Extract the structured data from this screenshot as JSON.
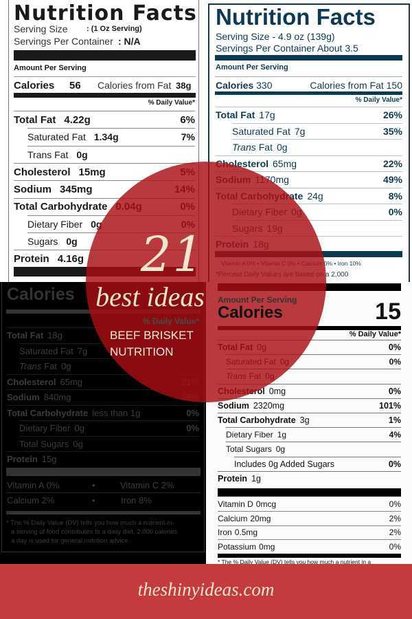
{
  "panels": [
    {
      "title": "Nutrition Facts",
      "serving_size_label": "Serving Size",
      "serving_size_value": ": (1 Oz Serving)",
      "servings_label": "Servings Per Container",
      "servings_value": ": N/A",
      "amount_per_serving": "Amount Per Serving",
      "calories_label": "Calories",
      "calories_value": "56",
      "calories_fat_label": "Calories from Fat",
      "calories_fat_value": "38g",
      "daily_value_header": "% Daily Value*",
      "rows": [
        {
          "label": "Total Fat",
          "amount": "4.22g",
          "dv": "6%",
          "bold": true
        },
        {
          "label": "Saturated Fat",
          "amount": "1.34g",
          "dv": "7%",
          "sub": true
        },
        {
          "label": "Trans Fat",
          "amount": "0g",
          "dv": "",
          "sub": true
        },
        {
          "label": "Cholesterol",
          "amount": "15mg",
          "dv": "5%",
          "bold": true
        },
        {
          "label": "Sodium",
          "amount": "345mg",
          "dv": "14%",
          "bold": true
        },
        {
          "label": "Total Carbohydrate",
          "amount": "0.04g",
          "dv": "0%",
          "bold": true
        },
        {
          "label": "Dietary Fiber",
          "amount": "0g",
          "dv": "0%",
          "sub": true
        },
        {
          "label": "Sugars",
          "amount": "0g",
          "dv": "",
          "sub": true
        },
        {
          "label": "Protein",
          "amount": "4.16g",
          "dv": "",
          "bold": true
        }
      ]
    },
    {
      "title": "Nutrition Facts",
      "serving_size_line": "Serving Size - 4.9 oz (139g)",
      "servings_line": "Servings Per Container About 3.5",
      "amount_per_serving": "Amount Per Serving",
      "calories_label": "Calories",
      "calories_value": "330",
      "calories_fat_line": "Calories from Fat 150",
      "daily_value_header": "% Daily Value*",
      "rows": [
        {
          "label": "Total Fat",
          "amount": "17g",
          "dv": "26%",
          "bold": true
        },
        {
          "label": "Saturated Fat",
          "amount": "7g",
          "dv": "35%",
          "sub": true
        },
        {
          "label": "Trans",
          "label_rest": "Fat",
          "amount": "0g",
          "dv": "",
          "sub": true
        },
        {
          "label": "Cholesterol",
          "amount": "65mg",
          "dv": "22%",
          "bold": true
        },
        {
          "label": "Sodium",
          "amount": "1170mg",
          "dv": "49%",
          "bold": true
        },
        {
          "label": "Total Carbohydrate",
          "amount": "24g",
          "dv": "8%",
          "bold": true
        },
        {
          "label": "Dietary Fiber",
          "amount": "0g",
          "dv": "0%",
          "sub": true
        },
        {
          "label": "Sugars",
          "amount": "19g",
          "dv": "",
          "sub": true
        },
        {
          "label": "Protein",
          "amount": "18g",
          "dv": "",
          "bold": true
        }
      ],
      "vitamins_line": "Vitamin A 0% • Vitamin C 0% • Calcium 0% • Iron 10%",
      "footnote": "*Percent Daily Values are based on a 2,000"
    },
    {
      "calories_label": "Calories",
      "daily_value_header": "% Daily Value*",
      "rows": [
        {
          "label": "Total Fat",
          "amount": "18g",
          "dv": "",
          "bold": true
        },
        {
          "label": "Saturated Fat",
          "amount": "7g",
          "dv": "",
          "sub": true
        },
        {
          "label": "Trans",
          "label_rest": "Fat",
          "amount": "0g",
          "dv": "",
          "sub": true
        },
        {
          "label": "Cholesterol",
          "amount": "65mg",
          "dv": "21%",
          "bold": true
        },
        {
          "label": "Sodium",
          "amount": "840mg",
          "dv": "35%",
          "bold": true
        },
        {
          "label": "Total Carbohydrate",
          "amount": "less than 1g",
          "dv": "0%",
          "bold": true
        },
        {
          "label": "Dietary Fiber",
          "amount": "0g",
          "dv": "0%",
          "sub": true
        },
        {
          "label": "Total Sugars",
          "amount": "0g",
          "dv": "",
          "sub": true
        },
        {
          "label": "Protein",
          "amount": "15g",
          "dv": "",
          "bold": true
        }
      ],
      "vitamin_a": "Vitamin A 0%",
      "vitamin_c": "Vitamin C 2%",
      "calcium": "Calcium 2%",
      "iron": "Iron 8%",
      "bullet": "•",
      "footnote": [
        "* The % Daily Value (DV) tells you how much a nutrient in",
        "a serving of food contributes to a daily diet. 2,000 calories",
        "a day is used for general nutrition advice."
      ]
    },
    {
      "amount_per_serving": "Amount Per Serving",
      "calories_label": "Calories",
      "calories_value": "15",
      "daily_value_header": "% Daily Value*",
      "rows": [
        {
          "label": "Total Fat",
          "amount": "0g",
          "dv": "0%",
          "bold": true
        },
        {
          "label": "Saturated Fat",
          "amount": "0g",
          "dv": "0%",
          "sub": true
        },
        {
          "label": "Trans",
          "label_rest": "Fat",
          "amount": "0g",
          "dv": "",
          "sub": true
        },
        {
          "label": "Cholesterol",
          "amount": "0mg",
          "dv": "0%",
          "bold": true
        },
        {
          "label": "Sodium",
          "amount": "2320mg",
          "dv": "101%",
          "bold": true
        },
        {
          "label": "Total Carbohydrate",
          "amount": "3g",
          "dv": "1%",
          "bold": true
        },
        {
          "label": "Dietary Fiber",
          "amount": "1g",
          "dv": "4%",
          "sub": true
        },
        {
          "label": "Total Sugars",
          "amount": "0g",
          "dv": "",
          "sub": true
        },
        {
          "label": "Includes 0g Added Sugars",
          "amount": "",
          "dv": "0%",
          "sub2": true
        },
        {
          "label": "Protein",
          "amount": "1g",
          "dv": "",
          "bold": true
        }
      ],
      "minerals": [
        {
          "label": "Vitamin D",
          "amount": "0mcg",
          "dv": "0%"
        },
        {
          "label": "Calcium",
          "amount": "20mg",
          "dv": "2%"
        },
        {
          "label": "Iron",
          "amount": "0.5mg",
          "dv": "2%"
        },
        {
          "label": "Potassium",
          "amount": "0mg",
          "dv": "0%"
        }
      ],
      "footnote": "* The % Daily Value (DV) tells you how much a nutrient in a"
    }
  ],
  "overlay": {
    "number": "21",
    "headline": "best ideas",
    "subtitle_line1": "BEEF BRISKET",
    "subtitle_line2": "NUTRITION",
    "circle_color": "#aa0f14"
  },
  "footer": {
    "site": "theshinyideas.com",
    "color": "#c53a3c"
  }
}
